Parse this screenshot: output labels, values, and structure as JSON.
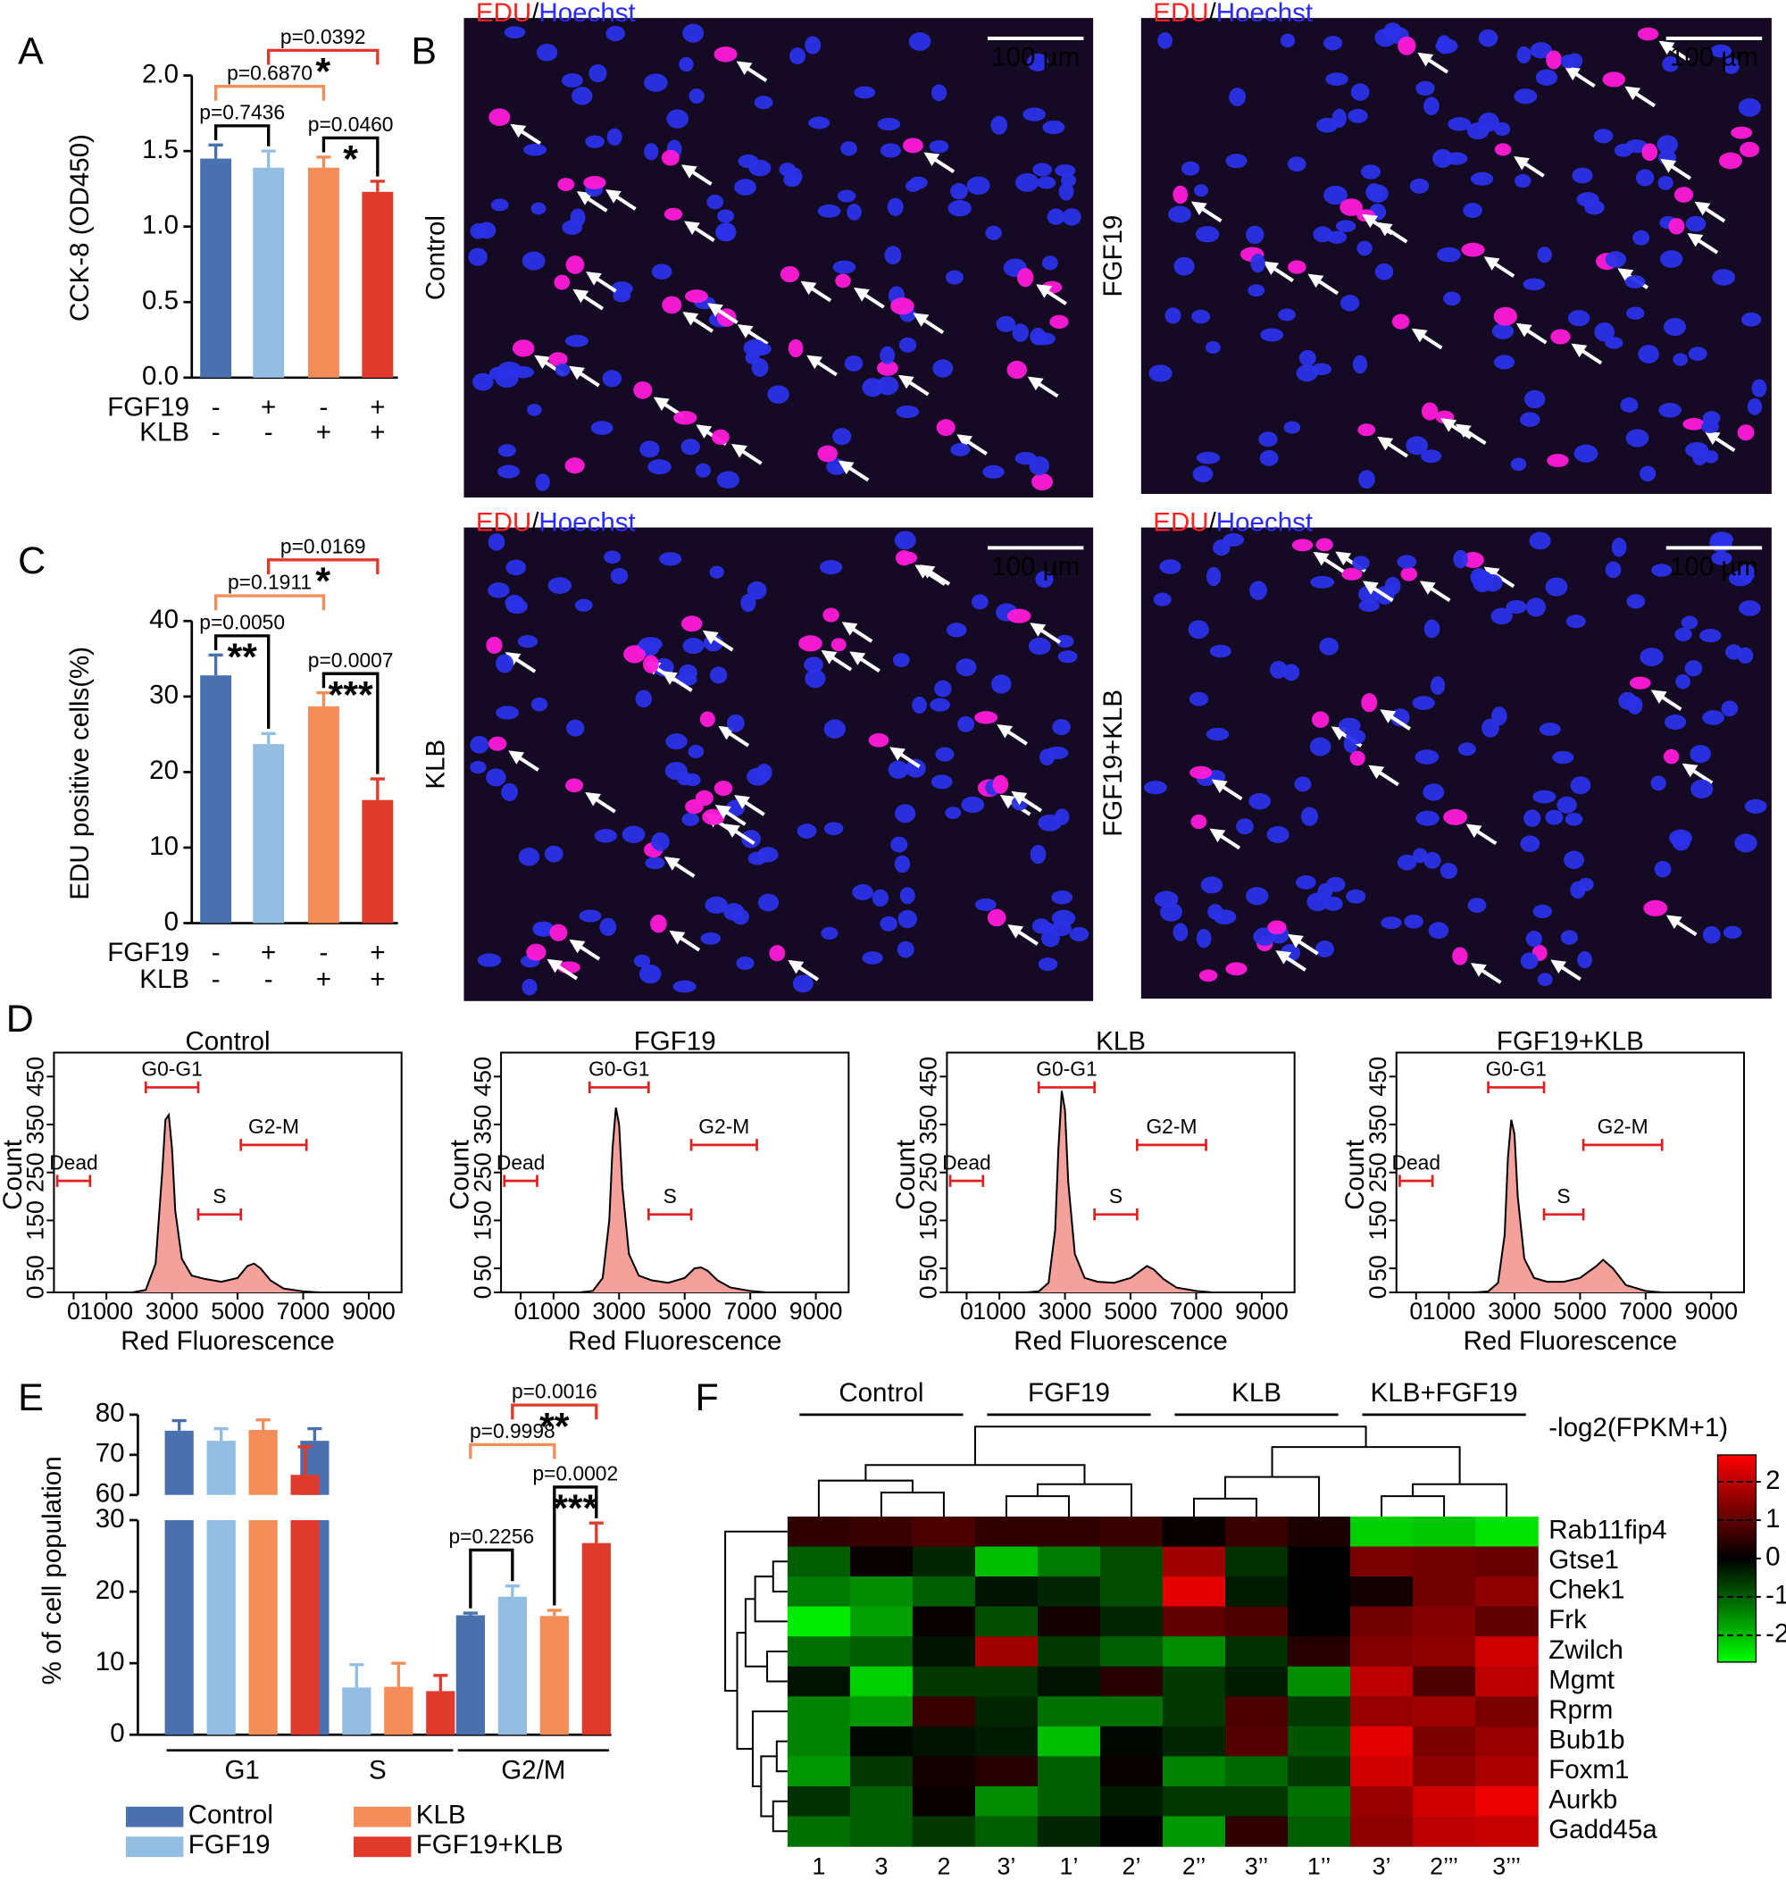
{
  "panel_labels": [
    "A",
    "B",
    "C",
    "D",
    "E",
    "F"
  ],
  "images": {
    "stain_label": [
      "EDU",
      "/",
      "Hoechst"
    ],
    "scale_bar": "100 µm",
    "conditions": [
      "Control",
      "FGF19",
      "KLB",
      "FGF19+KLB"
    ]
  },
  "chart_data": [
    {
      "type": "bar",
      "y_label": "CCK-8  (OD450)",
      "values": [
        1.45,
        1.39,
        1.39,
        1.23
      ],
      "errors": [
        0.09,
        0.11,
        0.07,
        0.07
      ],
      "colors": [
        "#4a70ad",
        "#93bde3",
        "#f58d59",
        "#df3a2b"
      ],
      "ylim": [
        0,
        2.0
      ],
      "yticks": [
        {
          "value": 0,
          "label": "0.0"
        },
        {
          "value": 0.5,
          "label": "0.5"
        },
        {
          "value": 1.0,
          "label": "1.0"
        },
        {
          "value": 1.5,
          "label": "1.5"
        },
        {
          "value": 2.0,
          "label": "2.0"
        }
      ],
      "conditions": [
        {
          "name": "FGF19",
          "signs": [
            "-",
            "+",
            "-",
            "+"
          ]
        },
        {
          "name": "KLB",
          "signs": [
            "-",
            "-",
            "+",
            "+"
          ]
        }
      ],
      "comparisons": [
        {
          "pair": [
            0,
            1
          ],
          "label": "p=0.7436",
          "color": "#000000"
        },
        {
          "pair": [
            2,
            3
          ],
          "label": "p=0.0460",
          "stars": "*",
          "color": "#000000"
        },
        {
          "pair": [
            0,
            2
          ],
          "label": "p=0.6870",
          "color": "#f58d59"
        },
        {
          "pair": [
            1,
            3
          ],
          "label": "p=0.0392",
          "stars": "*",
          "color": "#df3a2b"
        }
      ]
    },
    {
      "type": "bar",
      "y_label": "EDU positive cells(%)",
      "values": [
        32.8,
        23.7,
        28.7,
        16.3
      ],
      "errors": [
        2.7,
        1.4,
        1.8,
        2.8
      ],
      "colors": [
        "#4a70ad",
        "#93bde3",
        "#f58d59",
        "#df3a2b"
      ],
      "ylim": [
        0,
        40
      ],
      "yticks": [
        0,
        10,
        20,
        30,
        40
      ],
      "conditions": [
        {
          "name": "FGF19",
          "signs": [
            "-",
            "+",
            "-",
            "+"
          ]
        },
        {
          "name": "KLB",
          "signs": [
            "-",
            "-",
            "+",
            "+"
          ]
        }
      ],
      "comparisons": [
        {
          "pair": [
            0,
            1
          ],
          "label": "p=0.0050",
          "stars": "**",
          "color": "#000000"
        },
        {
          "pair": [
            2,
            3
          ],
          "label": "p=0.0007",
          "stars": "***",
          "color": "#000000"
        },
        {
          "pair": [
            0,
            2
          ],
          "label": "p=0.1911",
          "color": "#f58d59"
        },
        {
          "pair": [
            1,
            3
          ],
          "label": "p=0.0169",
          "stars": "*",
          "color": "#df3a2b"
        }
      ]
    },
    {
      "type": "area",
      "title": "Control",
      "x_label": "Red Fluorescence",
      "y_label": "Count",
      "color": "#f4a19b",
      "x": [
        1800,
        2200,
        2500,
        2700,
        2800,
        2900,
        3000,
        3100,
        3300,
        3600,
        4000,
        4500,
        5000,
        5300,
        5500,
        5700,
        6000,
        6400,
        7000,
        7500
      ],
      "values": [
        0,
        5,
        60,
        250,
        360,
        370,
        300,
        170,
        70,
        35,
        28,
        22,
        30,
        55,
        60,
        50,
        25,
        8,
        2,
        0
      ],
      "xlim": [
        -600,
        10000
      ],
      "xticks": [
        0,
        1000,
        3000,
        5000,
        7000,
        9000
      ],
      "ylim": [
        0,
        500
      ],
      "yticks": [
        0,
        50,
        150,
        250,
        350,
        450
      ],
      "gate_color": "#e02020",
      "gates": [
        {
          "label": "Dead",
          "range": [
            -500,
            500
          ]
        },
        {
          "label": "G0-G1",
          "range": [
            2200,
            3800
          ]
        },
        {
          "label": "S",
          "range": [
            3800,
            5100
          ]
        },
        {
          "label": "G2-M",
          "range": [
            5100,
            7100
          ]
        }
      ]
    },
    {
      "type": "area",
      "title": "FGF19",
      "x_label": "Red Fluorescence",
      "y_label": "Count",
      "color": "#f4a19b",
      "x": [
        1800,
        2200,
        2500,
        2700,
        2800,
        2900,
        3000,
        3100,
        3300,
        3600,
        4000,
        4500,
        5000,
        5300,
        5500,
        5700,
        6000,
        6400,
        7000,
        7500
      ],
      "values": [
        0,
        3,
        30,
        150,
        300,
        385,
        350,
        220,
        80,
        35,
        25,
        20,
        30,
        50,
        52,
        45,
        25,
        10,
        3,
        0
      ],
      "xlim": [
        -600,
        10000
      ],
      "xticks": [
        0,
        1000,
        3000,
        5000,
        7000,
        9000
      ],
      "ylim": [
        0,
        500
      ],
      "yticks": [
        0,
        50,
        150,
        250,
        350,
        450
      ],
      "gate_color": "#e02020",
      "gates": [
        {
          "label": "Dead",
          "range": [
            -500,
            500
          ]
        },
        {
          "label": "G0-G1",
          "range": [
            2100,
            3900
          ]
        },
        {
          "label": "S",
          "range": [
            3900,
            5200
          ]
        },
        {
          "label": "G2-M",
          "range": [
            5200,
            7200
          ]
        }
      ]
    },
    {
      "type": "area",
      "title": "KLB",
      "x_label": "Red Fluorescence",
      "y_label": "Count",
      "color": "#f4a19b",
      "x": [
        1800,
        2200,
        2500,
        2700,
        2800,
        2900,
        3000,
        3100,
        3300,
        3600,
        4000,
        4500,
        5000,
        5300,
        5500,
        5700,
        6000,
        6400,
        7000,
        7500
      ],
      "values": [
        0,
        2,
        20,
        130,
        300,
        420,
        380,
        230,
        80,
        30,
        22,
        20,
        30,
        45,
        55,
        48,
        28,
        10,
        3,
        0
      ],
      "xlim": [
        -600,
        10000
      ],
      "xticks": [
        0,
        1000,
        3000,
        5000,
        7000,
        9000
      ],
      "ylim": [
        0,
        500
      ],
      "yticks": [
        0,
        50,
        150,
        250,
        350,
        450
      ],
      "gate_color": "#e02020",
      "gates": [
        {
          "label": "Dead",
          "range": [
            -500,
            500
          ]
        },
        {
          "label": "G0-G1",
          "range": [
            2200,
            3900
          ]
        },
        {
          "label": "S",
          "range": [
            3900,
            5200
          ]
        },
        {
          "label": "G2-M",
          "range": [
            5200,
            7300
          ]
        }
      ]
    },
    {
      "type": "area",
      "title": "FGF19+KLB",
      "x_label": "Red Fluorescence",
      "y_label": "Count",
      "color": "#f4a19b",
      "x": [
        1800,
        2200,
        2500,
        2700,
        2800,
        2900,
        3000,
        3100,
        3300,
        3600,
        4000,
        4500,
        5000,
        5300,
        5500,
        5700,
        6000,
        6400,
        7000,
        7500
      ],
      "values": [
        0,
        2,
        20,
        120,
        280,
        360,
        330,
        200,
        70,
        30,
        22,
        22,
        30,
        45,
        55,
        68,
        50,
        15,
        3,
        0
      ],
      "xlim": [
        -600,
        10000
      ],
      "xticks": [
        0,
        1000,
        3000,
        5000,
        7000,
        9000
      ],
      "ylim": [
        0,
        500
      ],
      "yticks": [
        0,
        50,
        150,
        250,
        350,
        450
      ],
      "gate_color": "#e02020",
      "gates": [
        {
          "label": "Dead",
          "range": [
            -500,
            500
          ]
        },
        {
          "label": "G0-G1",
          "range": [
            2200,
            3900
          ]
        },
        {
          "label": "S",
          "range": [
            3900,
            5100
          ]
        },
        {
          "label": "G2-M",
          "range": [
            5100,
            7500
          ]
        }
      ]
    },
    {
      "type": "bar",
      "y_label": "% of cell population",
      "categories": [
        "G1",
        "S",
        "G2/M"
      ],
      "series": [
        {
          "name": "Control",
          "color": "#4a70ad",
          "values": [
            76,
            73.5,
            16.7
          ],
          "errors": [
            2.5,
            3,
            0.3
          ]
        },
        {
          "name": "FGF19",
          "color": "#93bde3",
          "values": [
            73.5,
            6.6,
            19.3
          ],
          "errors": [
            3,
            3.2,
            1.5
          ]
        },
        {
          "name": "KLB",
          "color": "#f58d59",
          "values": [
            76.2,
            6.7,
            16.6
          ],
          "errors": [
            2.5,
            3.3,
            0.8
          ]
        },
        {
          "name": "FGF19+KLB",
          "color": "#df3a2b",
          "values": [
            65,
            6.1,
            26.8
          ],
          "errors": [
            7,
            2.2,
            2.8
          ]
        }
      ],
      "ylim": [
        0,
        80
      ],
      "ybreak": [
        30,
        60
      ],
      "yticks": [
        0,
        10,
        20,
        30,
        60,
        70,
        80
      ],
      "comparisons": [
        {
          "pair": [
            0,
            1
          ],
          "label": "p=0.2256",
          "color": "#000000"
        },
        {
          "pair": [
            2,
            3
          ],
          "label": "p=0.0002",
          "stars": "***",
          "color": "#000000"
        },
        {
          "pair": [
            0,
            2
          ],
          "label": "p=0.9998",
          "color": "#f58d59"
        },
        {
          "pair": [
            1,
            3
          ],
          "label": "p=0.0016",
          "stars": "**",
          "color": "#df3a2b"
        }
      ]
    },
    {
      "type": "heatmap",
      "color_label": "-log2(FPKM+1)",
      "groups": [
        "Control",
        "FGF19",
        "KLB",
        "KLB+FGF19"
      ],
      "columns": [
        "1",
        "3",
        "2",
        "3’",
        "1’",
        "2’",
        "2’’",
        "3’’",
        "1’’",
        "3’",
        "2’’’",
        "3’’’"
      ],
      "rows": [
        "Rab11fip4",
        "Gtse1",
        "Chek1",
        "Frk",
        "Zwilch",
        "Mgmt",
        "Rprm",
        "Bub1b",
        "Foxm1",
        "Aurkb",
        "Gadd45a"
      ],
      "values": [
        [
          0.5,
          0.6,
          0.8,
          0.5,
          0.5,
          0.6,
          0.1,
          0.6,
          0.3,
          -2.2,
          -2.1,
          -2.4
        ],
        [
          -1,
          0.1,
          -0.4,
          -2,
          -1.3,
          -0.8,
          1.7,
          -0.5,
          0,
          1.3,
          1.2,
          1.1
        ],
        [
          -1.3,
          -1.5,
          -1,
          -0.2,
          -0.4,
          -0.8,
          2.4,
          -0.3,
          0,
          0.2,
          1.2,
          1.5
        ],
        [
          -2.5,
          -1.7,
          0.1,
          -0.8,
          0.2,
          -0.4,
          1,
          0.8,
          0,
          1.2,
          1.4,
          1
        ],
        [
          -1.2,
          -1,
          -0.2,
          1.7,
          -0.6,
          -1,
          -1.5,
          -0.5,
          0.4,
          1.4,
          1.5,
          2.2
        ],
        [
          -0.2,
          -2.2,
          -0.6,
          -0.6,
          -0.2,
          0.4,
          -0.6,
          -0.3,
          -1.5,
          2,
          0.8,
          2
        ],
        [
          -1.4,
          -1.6,
          0.6,
          -0.4,
          -1.2,
          -1.2,
          -0.6,
          0.8,
          -0.6,
          1.6,
          1.7,
          1.3
        ],
        [
          -1.4,
          -0.1,
          -0.2,
          -0.3,
          -2,
          -0.1,
          -0.4,
          0.9,
          -0.9,
          2.4,
          1.3,
          1.6
        ],
        [
          -1.6,
          -0.6,
          0.2,
          0.4,
          -1,
          0.1,
          -1.4,
          -1.1,
          -0.6,
          2.2,
          1.5,
          1.8
        ],
        [
          -0.5,
          -1,
          0.1,
          -1.5,
          -1,
          -0.3,
          -0.6,
          -0.6,
          -1.2,
          1.6,
          2.2,
          2.5
        ],
        [
          -1.2,
          -1,
          -0.6,
          -1,
          -0.4,
          0,
          -1.6,
          0.5,
          -1,
          1.5,
          2,
          2.1
        ]
      ],
      "clim": [
        -2.7,
        2.7
      ],
      "cticks": [
        2,
        1,
        0,
        -1,
        -2
      ]
    }
  ]
}
